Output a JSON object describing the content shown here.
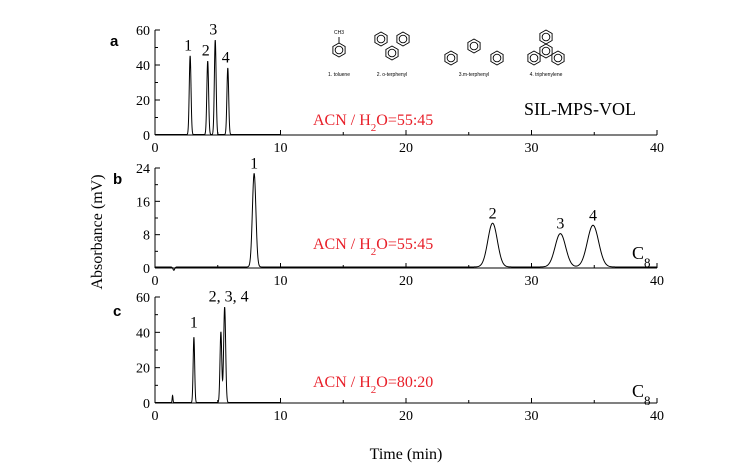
{
  "chart_data": [
    {
      "type": "line",
      "panel_label": "a",
      "xlim": [
        0,
        40
      ],
      "ylim": [
        0,
        60
      ],
      "xticks": [
        0,
        10,
        20,
        30,
        40
      ],
      "yticks": [
        0,
        20,
        40,
        60
      ],
      "xtick_labels": [
        "0",
        "10",
        "20",
        "30",
        "40"
      ],
      "ytick_labels": [
        "0",
        "20",
        "40",
        "60"
      ],
      "data_end_x": 10,
      "series": [
        {
          "peaks": [
            {
              "label": "1",
              "t": 2.8,
              "height": 45,
              "width": 0.07
            },
            {
              "label": "2",
              "t": 4.2,
              "height": 42,
              "width": 0.07
            },
            {
              "label": "3",
              "t": 4.8,
              "height": 54,
              "width": 0.07
            },
            {
              "label": "4",
              "t": 5.8,
              "height": 38,
              "width": 0.07
            }
          ]
        }
      ],
      "condition": {
        "prefix": "ACN / H",
        "sub": "2",
        "suffix": "O=55:45"
      },
      "stationary_phase": {
        "text": "SIL-MPS-VOL",
        "sub": ""
      },
      "structures": [
        {
          "name": "1. toluene",
          "substituent": "CH3"
        },
        {
          "name": "2. o-terphenyl"
        },
        {
          "name": "3.m-terphenyl"
        },
        {
          "name": "4. triphenylene"
        }
      ]
    },
    {
      "type": "line",
      "panel_label": "b",
      "xlim": [
        0,
        40
      ],
      "ylim": [
        0,
        24
      ],
      "xticks": [
        0,
        10,
        20,
        30,
        40
      ],
      "yticks": [
        0,
        8,
        16,
        24
      ],
      "xtick_labels": [
        "0",
        "10",
        "20",
        "30",
        "40"
      ],
      "ytick_labels": [
        "0",
        "8",
        "16",
        "24"
      ],
      "data_end_x": 40,
      "series": [
        {
          "peaks": [
            {
              "label": "1",
              "t": 7.9,
              "height": 22.5,
              "width": 0.14
            },
            {
              "label": "2",
              "t": 26.9,
              "height": 10.5,
              "width": 0.38
            },
            {
              "label": "3",
              "t": 32.3,
              "height": 8.0,
              "width": 0.42
            },
            {
              "label": "4",
              "t": 34.9,
              "height": 10.0,
              "width": 0.45
            }
          ]
        }
      ],
      "condition": {
        "prefix": "ACN / H",
        "sub": "2",
        "suffix": "O=55:45"
      },
      "stationary_phase": {
        "text": "C",
        "sub": "8"
      }
    },
    {
      "type": "line",
      "panel_label": "c",
      "xlim": [
        0,
        40
      ],
      "ylim": [
        0,
        60
      ],
      "xticks": [
        0,
        10,
        20,
        30,
        40
      ],
      "yticks": [
        0,
        20,
        40,
        60
      ],
      "xtick_labels": [
        "0",
        "10",
        "20",
        "30",
        "40"
      ],
      "ytick_labels": [
        "0",
        "20",
        "40",
        "60"
      ],
      "data_end_x": 10,
      "series": [
        {
          "peaks": [
            {
              "label": "1",
              "t": 3.1,
              "height": 37,
              "width": 0.06
            },
            {
              "label": "",
              "t": 5.25,
              "height": 40,
              "width": 0.07
            },
            {
              "label": "2, 3, 4",
              "t": 5.55,
              "height": 54,
              "width": 0.08
            }
          ]
        }
      ],
      "condition": {
        "prefix": "ACN / H",
        "sub": "2",
        "suffix": "O=80:20"
      },
      "stationary_phase": {
        "text": "C",
        "sub": "8"
      }
    }
  ],
  "axes": {
    "ylabel": "Absorbance (mV)",
    "xlabel": "Time (min)"
  }
}
